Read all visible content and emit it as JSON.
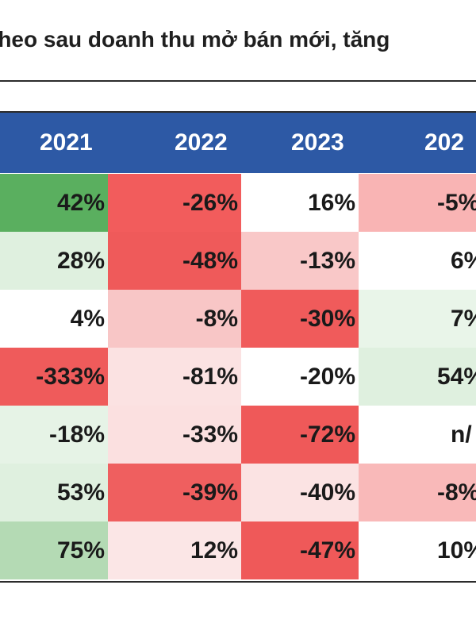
{
  "title": "theo sau doanh thu mở bán mới, tăng",
  "headers": [
    "2021",
    "2022",
    "2023",
    "202"
  ],
  "rows": [
    {
      "values": [
        "42%",
        "-26%",
        "16%",
        "-5%"
      ],
      "colors": [
        "#5aaf5f",
        "#f25c5c",
        "#ffffff",
        "#f9b4b4"
      ]
    },
    {
      "values": [
        "28%",
        "-48%",
        "-13%",
        "6%"
      ],
      "colors": [
        "#dff0df",
        "#ef5a5a",
        "#f9c8c8",
        "#ffffff"
      ]
    },
    {
      "values": [
        "4%",
        "-8%",
        "-30%",
        "7%"
      ],
      "colors": [
        "#ffffff",
        "#f8c6c6",
        "#f05b5b",
        "#e9f5e9"
      ]
    },
    {
      "values": [
        "-333%",
        "-81%",
        "-20%",
        "54%"
      ],
      "colors": [
        "#ef5b5b",
        "#fbe2e2",
        "#ffffff",
        "#dff0df"
      ]
    },
    {
      "values": [
        "-18%",
        "-33%",
        "-72%",
        "n/"
      ],
      "colors": [
        "#e6f3e6",
        "#fbe0e0",
        "#ef5959",
        "#ffffff"
      ]
    },
    {
      "values": [
        "53%",
        "-39%",
        "-40%",
        "-8%"
      ],
      "colors": [
        "#dff0df",
        "#ef5f5f",
        "#fbe3e3",
        "#f9b9b9"
      ]
    },
    {
      "values": [
        "75%",
        "12%",
        "-47%",
        "10%"
      ],
      "colors": [
        "#b4dab4",
        "#fbe6e6",
        "#ef5959",
        "#ffffff"
      ]
    }
  ]
}
